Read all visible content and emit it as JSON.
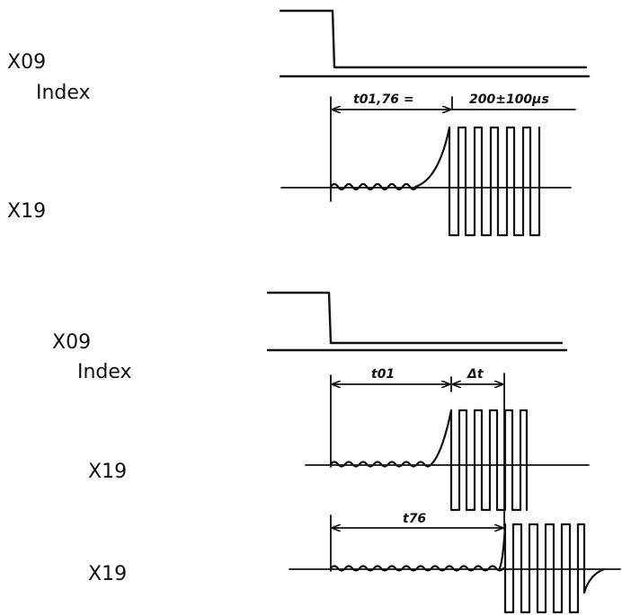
{
  "diagram": {
    "top": {
      "index_label_x09": "X09",
      "index_label_index": "Index",
      "signal_label": "X19",
      "dimension_t": "t01,76 =",
      "dimension_value": "200±100μs"
    },
    "bottom": {
      "index_label_x09": "X09",
      "index_label_index": "Index",
      "signal_label_1": "X19",
      "signal_label_2": "X19",
      "dimension_t01": "t01",
      "dimension_delta": "Δt",
      "dimension_t76": "t76"
    }
  }
}
